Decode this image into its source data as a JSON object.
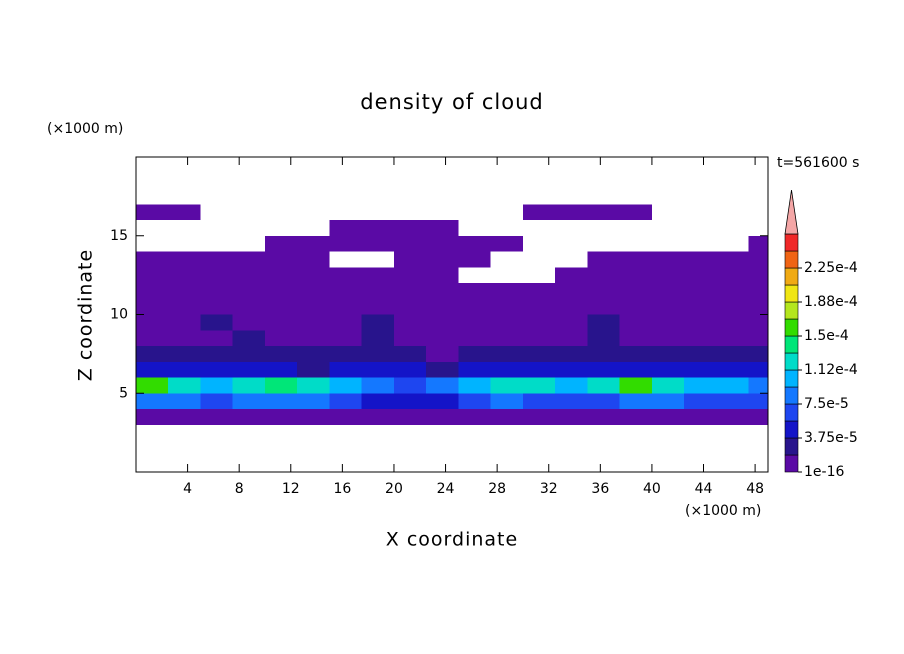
{
  "chart_data": {
    "type": "contour",
    "title": "density of cloud",
    "x_label": "X coordinate",
    "y_label": "Z coordinate",
    "x_unit": "(×1000 m)",
    "y_unit": "(×1000 m)",
    "time_label": "t=561600 s",
    "xlim": [
      0,
      49
    ],
    "ylim": [
      0,
      20
    ],
    "xticks": [
      4,
      8,
      12,
      16,
      20,
      24,
      28,
      32,
      36,
      40,
      44,
      48
    ],
    "yticks": [
      5,
      10,
      15
    ],
    "field": {
      "x": [
        1.25,
        3.75,
        6.25,
        8.75,
        11.25,
        13.75,
        16.25,
        18.75,
        21.25,
        23.75,
        26.25,
        28.75,
        31.25,
        33.75,
        36.25,
        38.75,
        41.25,
        43.75,
        46.25,
        48.75
      ],
      "z": [
        3.5,
        4.5,
        5.5,
        6.5,
        7.5,
        8.5,
        9.5,
        10.5,
        11.5,
        12.5,
        13.5,
        14.5,
        15.5,
        16.5
      ],
      "values": [
        [
          1.2e-05,
          1e-05,
          1.2e-05,
          9e-06,
          1.1e-05,
          1e-05,
          8e-06,
          1e-05,
          9e-06,
          1.1e-05,
          1e-05,
          1.2e-05,
          9e-06,
          1e-05,
          1.1e-05,
          1.2e-05,
          1e-05,
          1.1e-05,
          1e-05,
          9e-06
        ],
        [
          9e-05,
          8e-05,
          7e-05,
          8e-05,
          9e-05,
          8e-05,
          6e-05,
          5e-05,
          4e-05,
          5e-05,
          7e-05,
          8e-05,
          7e-05,
          6e-05,
          6e-05,
          8e-05,
          8e-05,
          7e-05,
          6e-05,
          7e-05
        ],
        [
          0.00016,
          0.00013,
          0.00011,
          0.00012,
          0.00014,
          0.00013,
          0.0001,
          8e-05,
          7e-05,
          9e-05,
          0.00011,
          0.00012,
          0.00012,
          0.00011,
          0.00012,
          0.00016,
          0.00013,
          0.00011,
          0.0001,
          9e-05
        ],
        [
          5e-05,
          4e-05,
          5e-05,
          4e-05,
          4e-05,
          3e-05,
          4e-05,
          5e-05,
          4e-05,
          3e-05,
          4e-05,
          4e-05,
          5e-05,
          4e-05,
          4e-05,
          5e-05,
          4e-05,
          4e-05,
          5e-05,
          4e-05
        ],
        [
          2.5e-05,
          2e-05,
          3e-05,
          2e-05,
          2.5e-05,
          2e-05,
          2e-05,
          3e-05,
          2e-05,
          1.5e-05,
          2e-05,
          2.5e-05,
          2e-05,
          2e-05,
          3e-05,
          2e-05,
          2e-05,
          2.5e-05,
          2e-05,
          2e-05
        ],
        [
          1.5e-05,
          1e-05,
          1.5e-05,
          2e-05,
          1e-05,
          5e-06,
          1.5e-05,
          2e-05,
          1e-05,
          5e-06,
          1.5e-05,
          1e-05,
          5e-06,
          1.5e-05,
          2e-05,
          1e-05,
          1.5e-05,
          1e-05,
          5e-06,
          1.5e-05
        ],
        [
          5e-06,
          5e-06,
          2e-05,
          5e-06,
          5e-06,
          5e-06,
          5e-06,
          2e-05,
          5e-06,
          5e-06,
          5e-06,
          5e-06,
          5e-06,
          5e-06,
          2e-05,
          5e-06,
          5e-06,
          5e-06,
          5e-06,
          5e-06
        ],
        [
          3e-06,
          3e-06,
          3e-06,
          3e-06,
          3e-06,
          3e-06,
          3e-06,
          3e-06,
          3e-06,
          3e-06,
          3e-06,
          3e-06,
          3e-06,
          3e-06,
          3e-06,
          3e-06,
          3e-06,
          3e-06,
          3e-06,
          3e-06
        ],
        [
          2e-06,
          2e-06,
          2e-06,
          2e-06,
          2e-06,
          2e-06,
          2e-06,
          2e-06,
          2e-06,
          2e-06,
          2e-06,
          2e-06,
          2e-06,
          2e-06,
          2e-06,
          2e-06,
          2e-06,
          2e-06,
          2e-06,
          2e-06
        ],
        [
          1e-06,
          1e-06,
          1e-06,
          1e-06,
          1e-06,
          1e-06,
          1e-06,
          1e-06,
          1e-06,
          1e-06,
          0,
          0,
          0,
          1e-06,
          1e-06,
          1e-06,
          1e-06,
          1e-06,
          1e-06,
          1e-06
        ],
        [
          1e-06,
          1e-06,
          1e-06,
          1e-06,
          1e-06,
          1e-06,
          0,
          0,
          1e-06,
          1e-06,
          1e-06,
          0,
          0,
          0,
          1e-06,
          1e-06,
          1e-06,
          1e-06,
          1e-06,
          1e-06
        ],
        [
          0,
          0,
          0,
          0,
          1e-06,
          1e-06,
          1e-06,
          1e-06,
          1e-06,
          1e-06,
          1e-06,
          1e-06,
          0,
          0,
          0,
          0,
          0,
          0,
          0,
          1e-06
        ],
        [
          0,
          0,
          0,
          0,
          0,
          0,
          1e-06,
          1e-06,
          1e-06,
          1e-06,
          0,
          0,
          0,
          0,
          0,
          0,
          0,
          0,
          0,
          0
        ],
        [
          1e-06,
          1e-06,
          0,
          0,
          0,
          0,
          0,
          0,
          0,
          0,
          0,
          0,
          1e-06,
          1e-06,
          1e-06,
          1e-06,
          0,
          0,
          0,
          0
        ]
      ]
    },
    "colorbar": {
      "ticks": [
        1e-16,
        {
          "value": 3.75e-05,
          "label": "3.75e-5"
        },
        {
          "value": 7.5e-05,
          "label": "7.5e-5"
        },
        {
          "value": 0.0001125,
          "label": "1.12e-4"
        },
        {
          "value": 0.00015,
          "label": "1.5e-4"
        },
        {
          "value": 0.0001875,
          "label": "1.88e-4"
        },
        {
          "value": 0.000225,
          "label": "2.25e-4"
        }
      ],
      "colors": [
        "#5a0aa5",
        "#28148c",
        "#1414c8",
        "#1e46f0",
        "#1478ff",
        "#00b4ff",
        "#00dcc8",
        "#00e678",
        "#32dc00",
        "#b4e61e",
        "#f0e614",
        "#f0aa14",
        "#f06414",
        "#f02828"
      ],
      "extend_color": "#f4a6a6"
    }
  }
}
